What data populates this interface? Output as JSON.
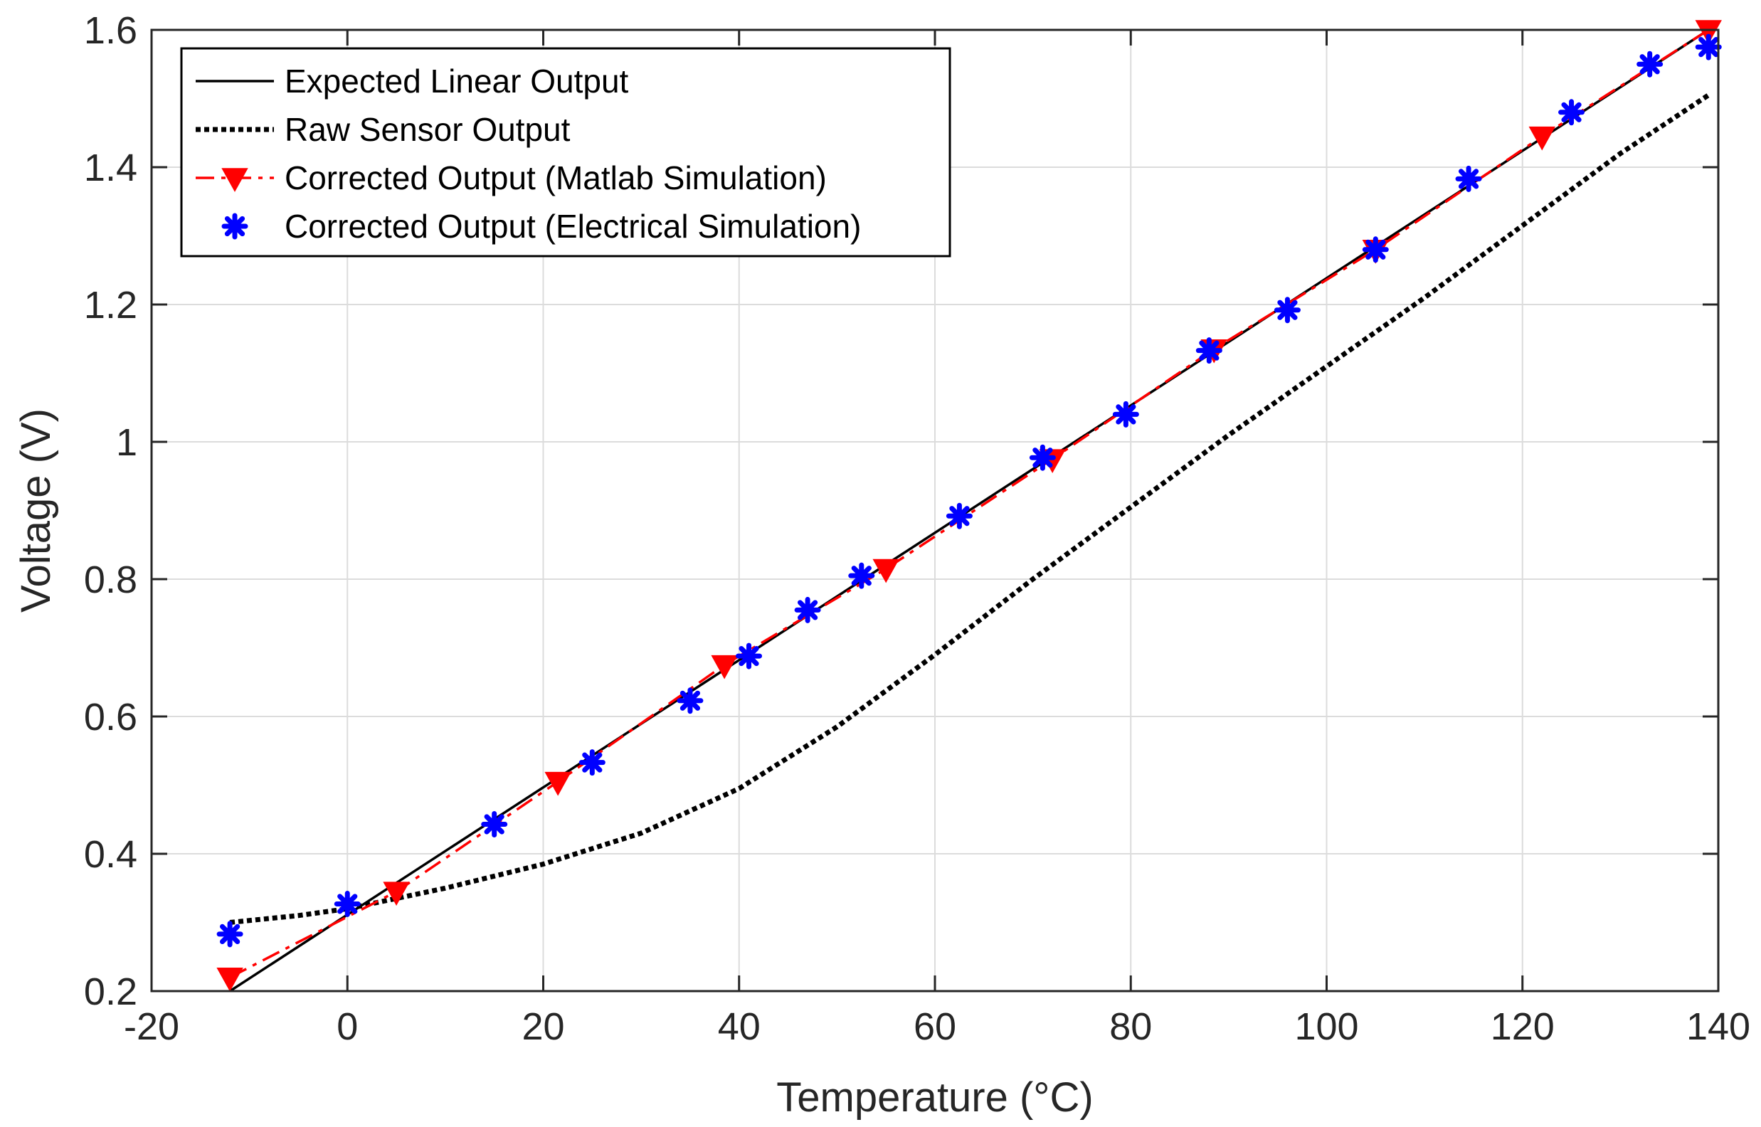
{
  "chart_data": {
    "type": "line",
    "title": "",
    "xlabel": "Temperature (°C)",
    "ylabel": "Voltage (V)",
    "xlim": [
      -20,
      140
    ],
    "ylim": [
      0.2,
      1.6
    ],
    "x_ticks": [
      "-20",
      "0",
      "20",
      "40",
      "60",
      "80",
      "100",
      "120",
      "140"
    ],
    "x_tick_values": [
      -20,
      0,
      20,
      40,
      60,
      80,
      100,
      120,
      140
    ],
    "y_ticks": [
      "0.2",
      "0.4",
      "0.6",
      "0.8",
      "1",
      "1.2",
      "1.4",
      "1.6"
    ],
    "y_tick_values": [
      0.2,
      0.4,
      0.6,
      0.8,
      1.0,
      1.2,
      1.4,
      1.6
    ],
    "grid": true,
    "legend_position": "top-left",
    "series": [
      {
        "name": "Expected Linear Output",
        "style": "solid",
        "color": "#000000",
        "marker": "none",
        "x": [
          -12,
          139
        ],
        "y": [
          0.2,
          1.6
        ]
      },
      {
        "name": "Raw Sensor Output",
        "style": "dotted",
        "color": "#000000",
        "marker": "none",
        "x": [
          -12,
          -5,
          0,
          10,
          20,
          30,
          40,
          50,
          60,
          70,
          80,
          90,
          100,
          110,
          120,
          130,
          139
        ],
        "y": [
          0.3,
          0.31,
          0.32,
          0.35,
          0.385,
          0.43,
          0.495,
          0.585,
          0.69,
          0.8,
          0.905,
          1.01,
          1.11,
          1.21,
          1.315,
          1.42,
          1.505
        ]
      },
      {
        "name": "Corrected Output (Matlab Simulation)",
        "style": "dashdot",
        "color": "#ff0000",
        "marker": "triangle-down",
        "x": [
          -12,
          5,
          21.5,
          38.5,
          55,
          72,
          88.5,
          105,
          122,
          139
        ],
        "y": [
          0.22,
          0.345,
          0.505,
          0.675,
          0.815,
          0.975,
          1.135,
          1.28,
          1.445,
          1.6
        ]
      },
      {
        "name": "Corrected Output (Electrical Simulation)",
        "style": "none",
        "color": "#0000ff",
        "marker": "asterisk",
        "x": [
          -12,
          0,
          15,
          25,
          35,
          41,
          47,
          52.5,
          62.5,
          71,
          79.5,
          88,
          96,
          105,
          114.5,
          125,
          133,
          139
        ],
        "y": [
          0.283,
          0.327,
          0.443,
          0.533,
          0.623,
          0.688,
          0.755,
          0.805,
          0.892,
          0.977,
          1.04,
          1.133,
          1.192,
          1.28,
          1.383,
          1.48,
          1.55,
          1.575
        ]
      }
    ]
  }
}
